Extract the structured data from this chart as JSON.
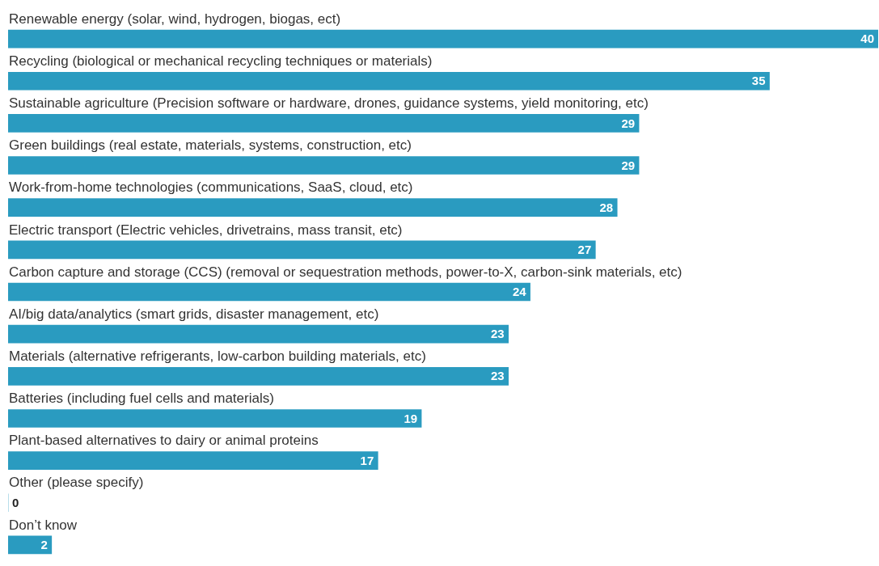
{
  "chart_data": {
    "type": "bar",
    "orientation": "horizontal",
    "data_labels": true,
    "color": "#2a9bc0",
    "categories": [
      "Renewable energy (solar, wind, hydrogen, biogas, ect)",
      "Recycling (biological or mechanical recycling techniques or materials)",
      "Sustainable agriculture (Precision software or hardware, drones, guidance systems, yield monitoring, etc)",
      "Green buildings (real estate, materials, systems, construction, etc)",
      "Work-from-home technologies (communications, SaaS, cloud, etc)",
      "Electric transport (Electric vehicles, drivetrains, mass transit, etc)",
      "Carbon capture and storage (CCS) (removal or sequestration methods, power-to-X, carbon-sink materials, etc)",
      "AI/big data/analytics (smart grids, disaster management, etc)",
      "Materials (alternative refrigerants, low-carbon building materials, etc)",
      "Batteries (including fuel cells and materials)",
      "Plant-based alternatives to dairy or animal proteins",
      "Other (please specify)",
      "Don’t know"
    ],
    "values": [
      40,
      35,
      29,
      29,
      28,
      27,
      24,
      23,
      23,
      19,
      17,
      0,
      2
    ]
  }
}
